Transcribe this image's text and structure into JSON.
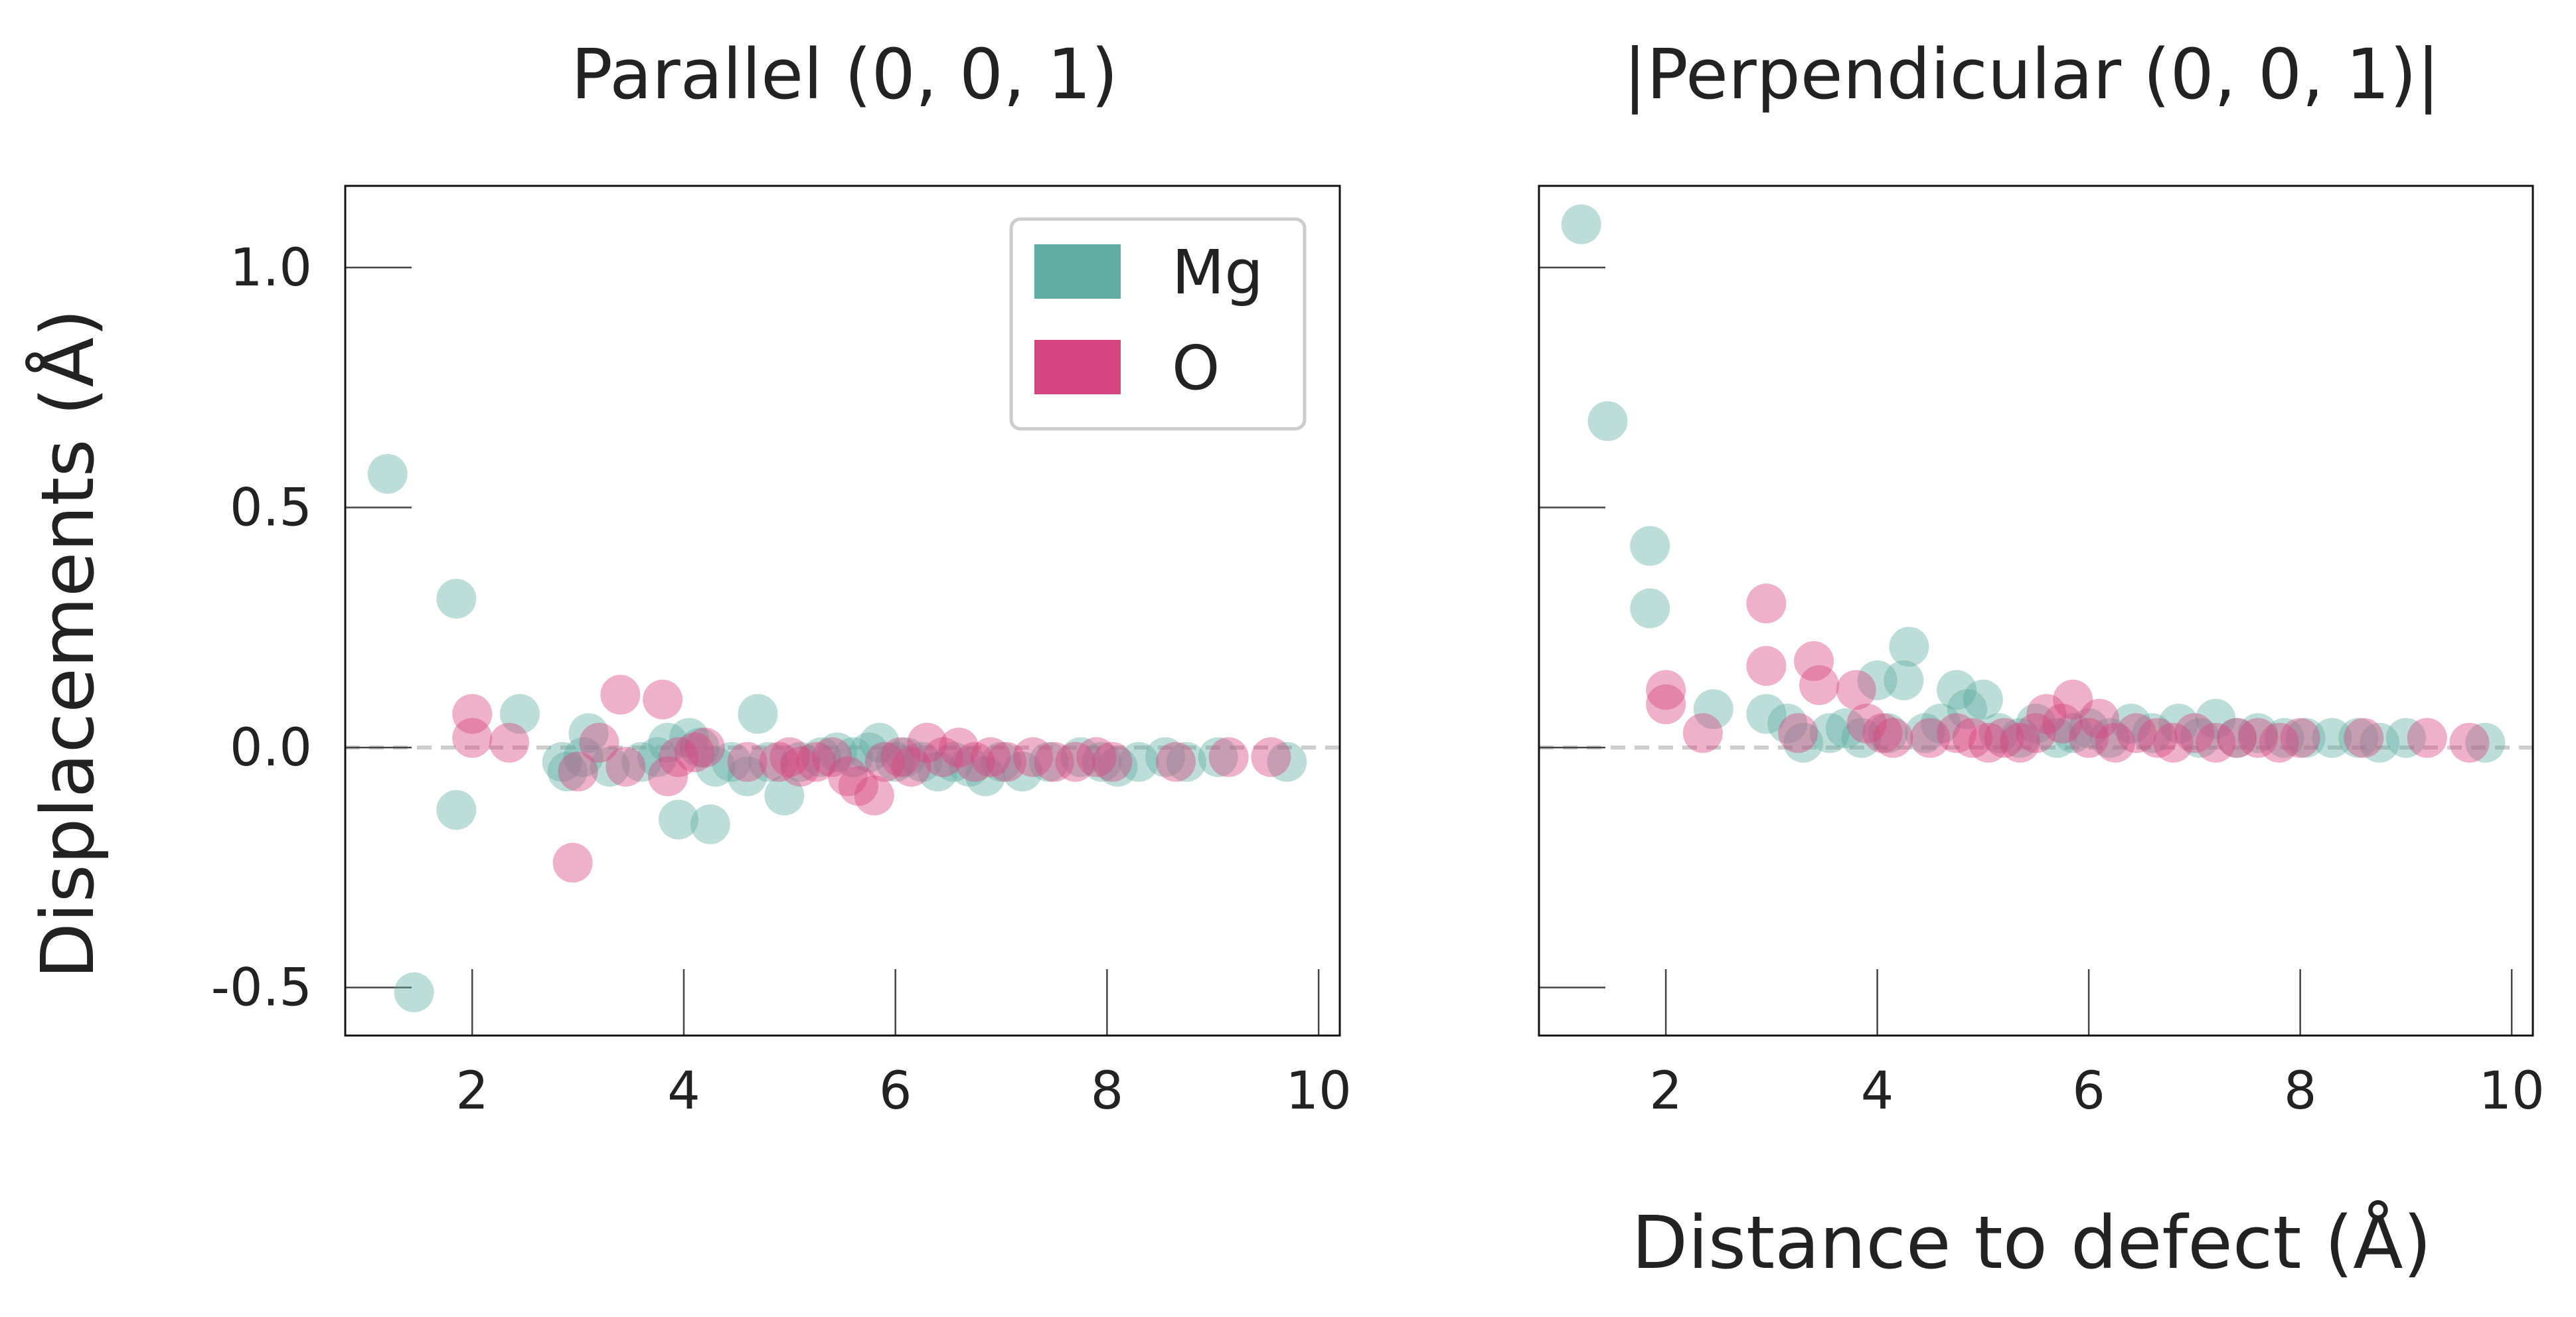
{
  "chart_data": [
    {
      "type": "scatter",
      "title": "Parallel (0, 0, 1)",
      "xlabel": "",
      "ylabel": "Displacements (Å)",
      "xlim": [
        0.8,
        10.2
      ],
      "ylim": [
        -0.6,
        1.17
      ],
      "xticks": [
        2,
        4,
        6,
        8,
        10
      ],
      "xtick_labels": [
        "2",
        "4",
        "6",
        "8",
        "10"
      ],
      "yticks": [
        1.0,
        0.5,
        0.0,
        -0.5
      ],
      "ytick_labels": [
        "1.0",
        "0.5",
        "0.0",
        "-0.5"
      ],
      "zero_line": true,
      "grid": false,
      "legend": "top-right",
      "series": [
        {
          "name": "Mg",
          "color": "#5fada3",
          "points": [
            [
              1.2,
              0.57
            ],
            [
              1.45,
              -0.51
            ],
            [
              1.85,
              0.31
            ],
            [
              1.85,
              -0.13
            ],
            [
              2.45,
              0.07
            ],
            [
              2.85,
              -0.03
            ],
            [
              2.9,
              -0.05
            ],
            [
              3.05,
              -0.02
            ],
            [
              3.1,
              0.03
            ],
            [
              3.3,
              -0.04
            ],
            [
              3.6,
              -0.03
            ],
            [
              3.75,
              -0.02
            ],
            [
              3.85,
              0.01
            ],
            [
              3.95,
              -0.15
            ],
            [
              4.05,
              0.02
            ],
            [
              4.15,
              0.0
            ],
            [
              4.25,
              -0.16
            ],
            [
              4.3,
              -0.04
            ],
            [
              4.45,
              -0.03
            ],
            [
              4.6,
              -0.06
            ],
            [
              4.7,
              0.07
            ],
            [
              4.8,
              -0.03
            ],
            [
              4.95,
              -0.1
            ],
            [
              5.1,
              -0.03
            ],
            [
              5.3,
              -0.02
            ],
            [
              5.45,
              -0.01
            ],
            [
              5.6,
              -0.02
            ],
            [
              5.75,
              -0.01
            ],
            [
              5.85,
              0.01
            ],
            [
              6.0,
              -0.03
            ],
            [
              6.1,
              -0.02
            ],
            [
              6.25,
              -0.03
            ],
            [
              6.4,
              -0.05
            ],
            [
              6.55,
              -0.03
            ],
            [
              6.7,
              -0.04
            ],
            [
              6.85,
              -0.06
            ],
            [
              7.0,
              -0.03
            ],
            [
              7.2,
              -0.05
            ],
            [
              7.45,
              -0.03
            ],
            [
              7.75,
              -0.02
            ],
            [
              7.95,
              -0.03
            ],
            [
              8.1,
              -0.04
            ],
            [
              8.3,
              -0.03
            ],
            [
              8.55,
              -0.02
            ],
            [
              8.75,
              -0.03
            ],
            [
              9.05,
              -0.02
            ],
            [
              9.7,
              -0.03
            ]
          ]
        },
        {
          "name": "O",
          "color": "#d6457f",
          "points": [
            [
              2.0,
              0.07
            ],
            [
              2.0,
              0.02
            ],
            [
              2.35,
              0.01
            ],
            [
              2.95,
              -0.24
            ],
            [
              3.0,
              -0.05
            ],
            [
              3.2,
              0.01
            ],
            [
              3.4,
              0.11
            ],
            [
              3.45,
              -0.04
            ],
            [
              3.8,
              0.1
            ],
            [
              3.85,
              -0.06
            ],
            [
              3.95,
              -0.02
            ],
            [
              4.1,
              -0.01
            ],
            [
              4.2,
              0.0
            ],
            [
              4.6,
              -0.03
            ],
            [
              4.9,
              -0.03
            ],
            [
              5.0,
              -0.02
            ],
            [
              5.1,
              -0.04
            ],
            [
              5.25,
              -0.03
            ],
            [
              5.4,
              -0.02
            ],
            [
              5.55,
              -0.06
            ],
            [
              5.65,
              -0.08
            ],
            [
              5.8,
              -0.1
            ],
            [
              5.9,
              -0.03
            ],
            [
              6.05,
              -0.02
            ],
            [
              6.15,
              -0.04
            ],
            [
              6.3,
              0.01
            ],
            [
              6.45,
              -0.02
            ],
            [
              6.6,
              0.0
            ],
            [
              6.75,
              -0.03
            ],
            [
              6.9,
              -0.02
            ],
            [
              7.05,
              -0.03
            ],
            [
              7.3,
              -0.02
            ],
            [
              7.5,
              -0.03
            ],
            [
              7.7,
              -0.03
            ],
            [
              7.9,
              -0.02
            ],
            [
              8.05,
              -0.03
            ],
            [
              8.65,
              -0.03
            ],
            [
              9.15,
              -0.02
            ],
            [
              9.55,
              -0.02
            ]
          ]
        }
      ]
    },
    {
      "type": "scatter",
      "title": "|Perpendicular (0, 0, 1)|",
      "xlabel": "Distance to defect (Å)",
      "ylabel": "",
      "xlim": [
        0.8,
        10.2
      ],
      "ylim": [
        -0.6,
        1.17
      ],
      "xticks": [
        2,
        4,
        6,
        8,
        10
      ],
      "xtick_labels": [
        "2",
        "4",
        "6",
        "8",
        "10"
      ],
      "zero_line": true,
      "grid": false,
      "series": [
        {
          "name": "Mg",
          "color": "#5fada3",
          "points": [
            [
              1.2,
              1.09
            ],
            [
              1.45,
              0.68
            ],
            [
              1.85,
              0.42
            ],
            [
              1.85,
              0.29
            ],
            [
              2.45,
              0.08
            ],
            [
              2.95,
              0.07
            ],
            [
              3.15,
              0.05
            ],
            [
              3.3,
              0.01
            ],
            [
              3.55,
              0.03
            ],
            [
              3.7,
              0.04
            ],
            [
              3.85,
              0.02
            ],
            [
              4.0,
              0.14
            ],
            [
              4.1,
              0.03
            ],
            [
              4.25,
              0.14
            ],
            [
              4.3,
              0.21
            ],
            [
              4.45,
              0.03
            ],
            [
              4.6,
              0.05
            ],
            [
              4.75,
              0.12
            ],
            [
              4.85,
              0.08
            ],
            [
              5.0,
              0.1
            ],
            [
              5.15,
              0.03
            ],
            [
              5.35,
              0.02
            ],
            [
              5.5,
              0.05
            ],
            [
              5.7,
              0.02
            ],
            [
              5.85,
              0.03
            ],
            [
              6.0,
              0.04
            ],
            [
              6.2,
              0.02
            ],
            [
              6.4,
              0.05
            ],
            [
              6.6,
              0.03
            ],
            [
              6.85,
              0.05
            ],
            [
              7.05,
              0.02
            ],
            [
              7.2,
              0.06
            ],
            [
              7.4,
              0.02
            ],
            [
              7.6,
              0.03
            ],
            [
              7.85,
              0.02
            ],
            [
              8.05,
              0.02
            ],
            [
              8.3,
              0.02
            ],
            [
              8.55,
              0.02
            ],
            [
              8.75,
              0.01
            ],
            [
              9.0,
              0.02
            ],
            [
              9.75,
              0.01
            ]
          ]
        },
        {
          "name": "O",
          "color": "#d6457f",
          "points": [
            [
              2.0,
              0.12
            ],
            [
              2.0,
              0.09
            ],
            [
              2.35,
              0.03
            ],
            [
              2.95,
              0.3
            ],
            [
              2.95,
              0.17
            ],
            [
              3.25,
              0.03
            ],
            [
              3.4,
              0.18
            ],
            [
              3.45,
              0.13
            ],
            [
              3.8,
              0.12
            ],
            [
              3.9,
              0.05
            ],
            [
              4.05,
              0.03
            ],
            [
              4.15,
              0.02
            ],
            [
              4.5,
              0.02
            ],
            [
              4.75,
              0.03
            ],
            [
              4.9,
              0.02
            ],
            [
              5.05,
              0.01
            ],
            [
              5.2,
              0.02
            ],
            [
              5.35,
              0.01
            ],
            [
              5.5,
              0.03
            ],
            [
              5.6,
              0.07
            ],
            [
              5.75,
              0.05
            ],
            [
              5.85,
              0.1
            ],
            [
              6.0,
              0.02
            ],
            [
              6.1,
              0.06
            ],
            [
              6.25,
              0.01
            ],
            [
              6.45,
              0.03
            ],
            [
              6.65,
              0.02
            ],
            [
              6.8,
              0.01
            ],
            [
              7.0,
              0.03
            ],
            [
              7.2,
              0.01
            ],
            [
              7.4,
              0.02
            ],
            [
              7.6,
              0.02
            ],
            [
              7.8,
              0.01
            ],
            [
              8.0,
              0.02
            ],
            [
              8.6,
              0.02
            ],
            [
              9.2,
              0.02
            ],
            [
              9.6,
              0.01
            ]
          ]
        }
      ]
    }
  ]
}
